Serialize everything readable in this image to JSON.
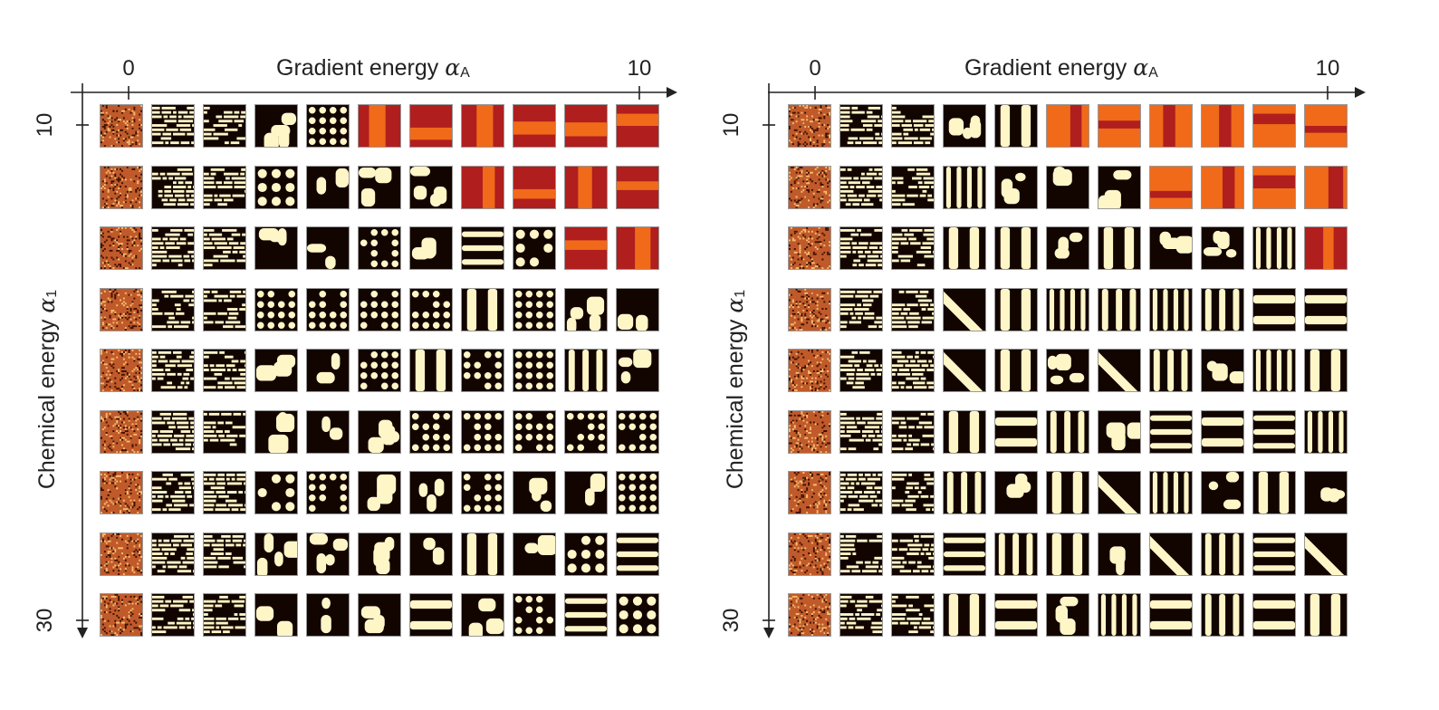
{
  "panels": [
    {
      "id": "left",
      "x_axis": {
        "title": "Gradient energy",
        "symbol": "α",
        "subscript": "A",
        "tick_start": "0",
        "tick_end": "10"
      },
      "y_axis": {
        "title": "Chemical energy",
        "symbol": "α",
        "subscript": "1",
        "tick_start": "10",
        "tick_end": "30"
      },
      "rows": 9,
      "cols": 11
    },
    {
      "id": "right",
      "x_axis": {
        "title": "Gradient energy",
        "symbol": "α",
        "subscript": "A",
        "tick_start": "0",
        "tick_end": "10"
      },
      "y_axis": {
        "title": "Chemical energy",
        "symbol": "α",
        "subscript": "1",
        "tick_start": "10",
        "tick_end": "30"
      },
      "rows": 9,
      "cols": 11
    }
  ],
  "colors": {
    "dark": "#120500",
    "light": "#fff6c8",
    "mid": "#e8782a",
    "red": "#b01e1e",
    "orange": "#f06a1a",
    "noise": "#c05a2a"
  }
}
